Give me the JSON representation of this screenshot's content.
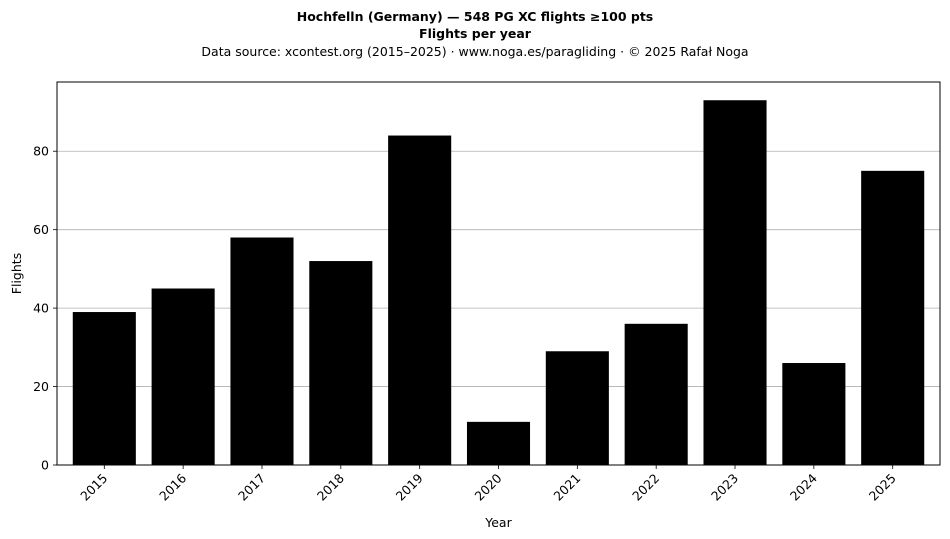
{
  "chart_data": {
    "type": "bar",
    "title": "Hochfelln (Germany)  —  548 PG XC flights ≥100 pts",
    "subtitle": "Flights per year",
    "source_note": "Data source: xcontest.org (2015–2025)  ·  www.noga.es/paragliding  ·  © 2025 Rafał Noga",
    "categories": [
      "2015",
      "2016",
      "2017",
      "2018",
      "2019",
      "2020",
      "2021",
      "2022",
      "2023",
      "2024",
      "2025"
    ],
    "values": [
      39,
      45,
      58,
      52,
      84,
      11,
      29,
      36,
      93,
      26,
      75
    ],
    "xlabel": "Year",
    "ylabel": "Flights",
    "ylim": [
      0,
      97.65
    ],
    "yticks": [
      0,
      20,
      40,
      60,
      80
    ],
    "grid": "horizontal",
    "bar_color": "#000000",
    "grid_color": "#b0b0b0",
    "x_tick_rotation_deg": 45
  }
}
